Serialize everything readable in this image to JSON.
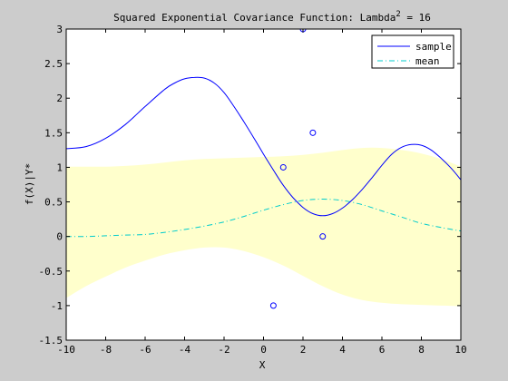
{
  "chart_data": {
    "type": "line",
    "title": "Squared Exponential Covariance Function: Lambda",
    "title_superscript": "2",
    "title_suffix": " = 16",
    "xlabel": "X",
    "ylabel": "f(X)|Y*",
    "xlim": [
      -10,
      10
    ],
    "ylim": [
      -1.5,
      3
    ],
    "xticks": [
      -10,
      -8,
      -6,
      -4,
      -2,
      0,
      2,
      4,
      6,
      8,
      10
    ],
    "yticks": [
      -1.5,
      -1,
      -0.5,
      0,
      0.5,
      1,
      1.5,
      2,
      2.5,
      3
    ],
    "ytick_labels": [
      "-1.5",
      "-1",
      "-0.5",
      "0",
      "0.5",
      "1",
      "1.5",
      "2",
      "2.5",
      "3"
    ],
    "grid": false,
    "legend_position": "top-right",
    "background_color": "#cccccc",
    "axes_color": "#ffffff",
    "band": {
      "color": "#ffffcc",
      "x": [
        -10,
        -9,
        -8,
        -7,
        -6,
        -5,
        -4,
        -3,
        -2,
        -1,
        0,
        1,
        2,
        3,
        4,
        5,
        6,
        7,
        8,
        9,
        10
      ],
      "upper": [
        1.01,
        1.01,
        1.01,
        1.02,
        1.04,
        1.07,
        1.1,
        1.12,
        1.13,
        1.14,
        1.15,
        1.16,
        1.18,
        1.21,
        1.25,
        1.28,
        1.28,
        1.25,
        1.2,
        1.12,
        1.01
      ],
      "lower": [
        -0.89,
        -0.72,
        -0.58,
        -0.45,
        -0.35,
        -0.26,
        -0.2,
        -0.16,
        -0.16,
        -0.21,
        -0.3,
        -0.42,
        -0.57,
        -0.72,
        -0.84,
        -0.92,
        -0.96,
        -0.98,
        -0.99,
        -1.0,
        -1.01
      ]
    },
    "series": [
      {
        "name": "sample",
        "color": "#0000ff",
        "style": "solid",
        "x": [
          -10,
          -9,
          -8,
          -7,
          -6,
          -5,
          -4.5,
          -4,
          -3.5,
          -3,
          -2.5,
          -2,
          -1.5,
          -1,
          -0.5,
          0,
          0.5,
          1,
          1.5,
          2,
          2.5,
          3,
          3.5,
          4,
          4.5,
          5,
          5.5,
          6,
          6.5,
          7,
          7.5,
          8,
          8.5,
          9,
          9.5,
          10
        ],
        "y": [
          1.27,
          1.3,
          1.42,
          1.62,
          1.88,
          2.13,
          2.22,
          2.28,
          2.3,
          2.29,
          2.22,
          2.08,
          1.88,
          1.66,
          1.43,
          1.19,
          0.96,
          0.74,
          0.56,
          0.42,
          0.33,
          0.3,
          0.33,
          0.41,
          0.53,
          0.68,
          0.85,
          1.03,
          1.19,
          1.29,
          1.33,
          1.32,
          1.25,
          1.13,
          0.99,
          0.82
        ]
      },
      {
        "name": "mean",
        "color": "#00cccc",
        "style": "dashdot",
        "x": [
          -10,
          -9,
          -8,
          -7,
          -6,
          -5,
          -4,
          -3,
          -2,
          -1,
          0,
          1,
          2,
          3,
          4,
          5,
          6,
          7,
          8,
          9,
          10
        ],
        "y": [
          0.0,
          0.0,
          0.01,
          0.02,
          0.03,
          0.06,
          0.1,
          0.15,
          0.21,
          0.29,
          0.38,
          0.46,
          0.52,
          0.54,
          0.52,
          0.46,
          0.37,
          0.28,
          0.19,
          0.13,
          0.08
        ]
      }
    ],
    "observations": {
      "color": "#0000ff",
      "x": [
        0.5,
        1.0,
        2.0,
        2.5,
        3.0
      ],
      "y": [
        -1.0,
        1.0,
        3.0,
        1.5,
        0.0
      ]
    }
  }
}
